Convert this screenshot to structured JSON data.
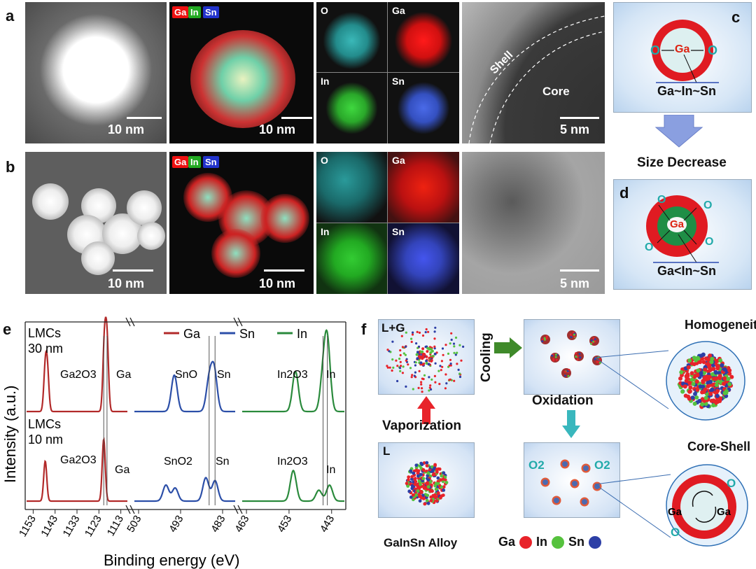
{
  "panel_labels": {
    "a": "a",
    "b": "b",
    "c": "c",
    "d": "d",
    "e": "e",
    "f": "f"
  },
  "row_a": {
    "haadf_scale": "10 nm",
    "tags": {
      "ga": "Ga",
      "in": "In",
      "sn": "Sn"
    },
    "map_scale": "10 nm",
    "maps": {
      "o": "O",
      "ga": "Ga",
      "in": "In",
      "sn": "Sn"
    },
    "hrtem_shell": "Shell",
    "hrtem_core": "Core",
    "hrtem_scale": "5 nm"
  },
  "row_b": {
    "haadf_scale": "10 nm",
    "tags": {
      "ga": "Ga",
      "in": "In",
      "sn": "Sn"
    },
    "map_scale": "10 nm",
    "maps": {
      "o": "O",
      "ga": "Ga",
      "in": "In",
      "sn": "Sn"
    },
    "hrtem_scale": "5 nm"
  },
  "panel_c": {
    "center": "Ga",
    "o_left": "O",
    "o_right": "O",
    "formula": "Ga~In~Sn"
  },
  "arrow_label": "Size Decrease",
  "panel_d": {
    "center": "Ga",
    "o": "O",
    "formula": "Ga<In~Sn"
  },
  "chart_data": {
    "type": "line",
    "xlabel": "Binding energy (eV)",
    "ylabel": "Intensity (a.u.)",
    "legend": [
      "Ga",
      "Sn",
      "In"
    ],
    "legend_placement": "top",
    "series_colors": {
      "Ga": "#b22a2a",
      "Sn": "#2c4fa8",
      "In": "#2a8a3c"
    },
    "xticks": {
      "ga": [
        "1153",
        "1143",
        "1133",
        "1123",
        "1113"
      ],
      "sn": [
        "503",
        "493",
        "483"
      ],
      "in": [
        "463",
        "453",
        "443"
      ]
    },
    "upper_labels": {
      "sample": "LMCs",
      "size": "30 nm",
      "ga_oxide": "Ga2O3",
      "ga": "Ga",
      "sn_oxide": "SnO",
      "sn": "Sn",
      "in_oxide": "In2O3",
      "in": "In"
    },
    "lower_labels": {
      "sample": "LMCs",
      "size": "10 nm",
      "ga_oxide": "Ga2O3",
      "ga": "Ga",
      "sn_oxide": "SnO2",
      "sn": "Sn",
      "in_oxide": "In2O3",
      "in": "In"
    },
    "peaks_30nm": {
      "Ga": [
        [
          1147.5,
          0.55
        ],
        [
          1146.5,
          0.52
        ],
        [
          1120.5,
          0.92
        ],
        [
          1119.3,
          0.95
        ]
      ],
      "Sn": [
        [
          494.5,
          0.5
        ],
        [
          486.2,
          0.42
        ],
        [
          485.0,
          0.55
        ]
      ],
      "In": [
        [
          451.5,
          0.55
        ],
        [
          445.0,
          0.45
        ],
        [
          444.0,
          0.92
        ]
      ]
    },
    "peaks_10nm": {
      "Ga": [
        [
          1147.5,
          0.55
        ],
        [
          1120.8,
          0.85
        ]
      ],
      "Sn": [
        [
          496.5,
          0.22
        ],
        [
          494.3,
          0.18
        ],
        [
          487.0,
          0.32
        ],
        [
          484.8,
          0.28
        ]
      ],
      "In": [
        [
          452.0,
          0.42
        ],
        [
          446.0,
          0.15
        ],
        [
          443.5,
          0.22
        ]
      ]
    }
  },
  "panel_f": {
    "lg": "L+G",
    "cooling": "Cooling",
    "vaporization": "Vaporization",
    "l": "L",
    "oxidation": "Oxidation",
    "homogeneity": "Homogeneity",
    "core_shell": "Core-Shell",
    "o2_left": "O2",
    "o2_right": "O2",
    "alloy": "GaInSn Alloy",
    "legend_ga": "Ga",
    "legend_in": "In",
    "legend_sn": "Sn",
    "cs_ga_left": "Ga",
    "cs_ga_right": "Ga",
    "cs_o": "O",
    "colors": {
      "ga": "#e8232a",
      "in": "#56c23e",
      "sn": "#2d3fa6"
    }
  }
}
